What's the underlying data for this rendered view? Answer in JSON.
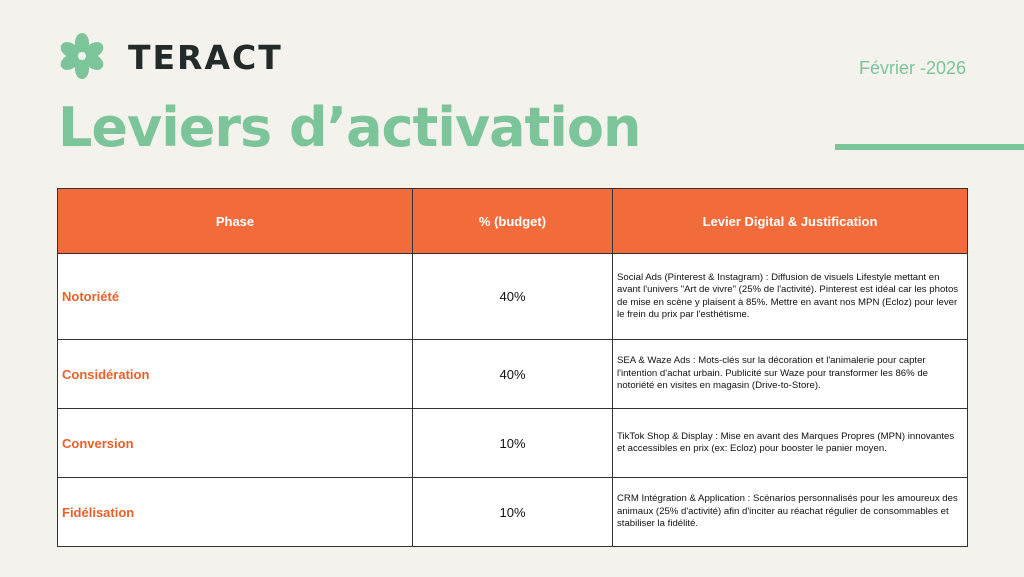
{
  "header": {
    "logo": "TERACT",
    "date": "Février -2026",
    "title": "Leviers d’activation"
  },
  "table": {
    "columns": [
      "Phase",
      "% (budget)",
      "Levier Digital & Justification"
    ],
    "rows": [
      [
        "Notoriété",
        "40%",
        "Social Ads (Pinterest & Instagram) : Diffusion de visuels Lifestyle mettant en avant l'univers \"Art de vivre\" (25% de l'activité). Pinterest est idéal car les photos de mise en scène y plaisent à 85%. Mettre en avant nos MPN (Ecloz) pour lever le frein du prix par l'esthétisme."
      ],
      [
        "Considération",
        "40%",
        "SEA & Waze Ads : Mots-clés sur la décoration et l'animalerie pour capter l'intention d'achat urbain. Publicité sur Waze pour transformer les 86% de notoriété en visites en magasin (Drive-to-Store)."
      ],
      [
        "Conversion",
        "10%",
        "TikTok Shop & Display : Mise en avant des Marques Propres (MPN) innovantes et accessibles en prix (ex: Ecloz) pour booster le panier moyen."
      ],
      [
        "Fidélisation",
        "10%",
        "CRM Intégration & Application : Scénarios personnalisés pour les amoureux des animaux (25% d'activité) afin d'inciter au réachat régulier de consommables et stabiliser la fidélité."
      ]
    ]
  }
}
